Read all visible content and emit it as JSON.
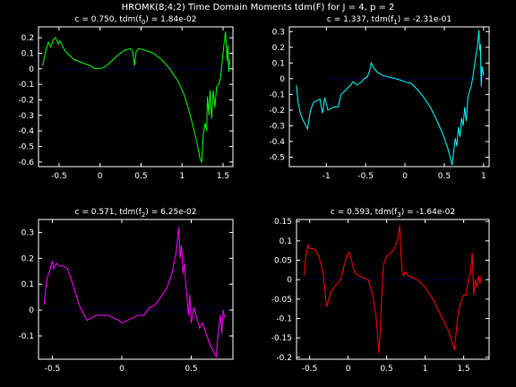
{
  "figure": {
    "title": "HROMK(8;4;2) Time Domain Moments tdm(F) for J = 4, p = 2",
    "background": "#000000",
    "axis_color": "#ffffff",
    "zero_line_color": "#0000cc"
  },
  "chart_data": [
    {
      "type": "line",
      "title_parts": [
        "c = 0.750, tdm(f",
        "0",
        ") = 1.84e-02"
      ],
      "color": "#00ff00",
      "xlim": [
        -0.75,
        1.62
      ],
      "ylim": [
        -0.63,
        0.27
      ],
      "xticks": [
        -0.5,
        0,
        0.5,
        1,
        1.5
      ],
      "xtick_labels": [
        "-0.5",
        "0",
        "0.5",
        "1",
        "1.5"
      ],
      "yticks": [
        0.2,
        0.1,
        0,
        -0.1,
        -0.2,
        -0.3,
        -0.4,
        -0.5,
        -0.6
      ],
      "ytick_labels": [
        "0.2",
        "0.1",
        "0",
        "-0.1",
        "-0.2",
        "-0.3",
        "-0.4",
        "-0.5",
        "-0.6"
      ],
      "zero_line": [
        -0.5,
        1.5
      ],
      "x": [
        -0.7,
        -0.66,
        -0.63,
        -0.6,
        -0.57,
        -0.54,
        -0.51,
        -0.49,
        -0.46,
        -0.43,
        -0.4,
        -0.36,
        -0.32,
        -0.27,
        -0.22,
        -0.17,
        -0.12,
        -0.08,
        -0.04,
        0.0,
        0.05,
        0.1,
        0.16,
        0.22,
        0.3,
        0.37,
        0.4,
        0.42,
        0.44,
        0.47,
        0.55,
        0.65,
        0.75,
        0.85,
        0.95,
        1.02,
        1.08,
        1.13,
        1.18,
        1.22,
        1.24,
        1.26,
        1.28,
        1.3,
        1.31,
        1.33,
        1.34,
        1.36,
        1.38,
        1.4,
        1.42,
        1.45,
        1.47,
        1.49,
        1.51,
        1.53,
        1.55,
        1.56,
        1.57,
        1.58
      ],
      "y": [
        0.02,
        0.12,
        0.17,
        0.14,
        0.19,
        0.2,
        0.16,
        0.18,
        0.15,
        0.12,
        0.1,
        0.08,
        0.06,
        0.05,
        0.04,
        0.03,
        0.02,
        0.005,
        0.0,
        0.0,
        0.01,
        0.03,
        0.06,
        0.09,
        0.12,
        0.13,
        0.11,
        0.02,
        0.11,
        0.13,
        0.12,
        0.1,
        0.06,
        0.0,
        -0.08,
        -0.16,
        -0.26,
        -0.36,
        -0.47,
        -0.58,
        -0.6,
        -0.42,
        -0.35,
        -0.4,
        -0.18,
        -0.3,
        -0.14,
        -0.32,
        -0.14,
        -0.25,
        -0.12,
        -0.1,
        -0.05,
        0.05,
        0.15,
        0.24,
        0.05,
        0.15,
        -0.02,
        0.06
      ]
    },
    {
      "type": "line",
      "title_parts": [
        "c = 1.337, tdm(f",
        "1",
        ") = -2.31e-01"
      ],
      "color": "#00ffff",
      "xlim": [
        -1.47,
        1.07
      ],
      "ylim": [
        -0.56,
        0.33
      ],
      "xticks": [
        -1,
        -0.5,
        0,
        0.5,
        1
      ],
      "xtick_labels": [
        "-1",
        "-0.5",
        "0",
        "0.5",
        "1"
      ],
      "yticks": [
        0.3,
        0.2,
        0.1,
        0,
        -0.1,
        -0.2,
        -0.3,
        -0.4,
        -0.5
      ],
      "ytick_labels": [
        "0.3",
        "0.2",
        "0.1",
        "0",
        "-0.1",
        "-0.2",
        "-0.3",
        "-0.4",
        "-0.5"
      ],
      "zero_line": [
        -1,
        1
      ],
      "x": [
        -1.38,
        -1.36,
        -1.33,
        -1.3,
        -1.27,
        -1.24,
        -1.2,
        -1.16,
        -1.12,
        -1.08,
        -1.05,
        -1.02,
        -0.98,
        -0.94,
        -0.9,
        -0.85,
        -0.81,
        -0.77,
        -0.73,
        -0.69,
        -0.66,
        -0.63,
        -0.61,
        -0.58,
        -0.55,
        -0.52,
        -0.48,
        -0.45,
        -0.43,
        -0.4,
        -0.35,
        -0.28,
        -0.2,
        -0.12,
        -0.05,
        0.0,
        0.08,
        0.16,
        0.24,
        0.32,
        0.4,
        0.48,
        0.55,
        0.6,
        0.64,
        0.66,
        0.68,
        0.7,
        0.72,
        0.74,
        0.76,
        0.78,
        0.8,
        0.82,
        0.84,
        0.86,
        0.88,
        0.9,
        0.92,
        0.94,
        0.95,
        0.96,
        0.97,
        0.98,
        1.0
      ],
      "y": [
        -0.04,
        -0.15,
        -0.22,
        -0.26,
        -0.29,
        -0.32,
        -0.2,
        -0.15,
        -0.14,
        -0.13,
        -0.22,
        -0.12,
        -0.2,
        -0.19,
        -0.18,
        -0.18,
        -0.1,
        -0.08,
        -0.06,
        -0.04,
        -0.02,
        -0.03,
        -0.04,
        -0.03,
        -0.02,
        0.0,
        0.01,
        0.05,
        0.1,
        0.07,
        0.04,
        0.02,
        0.01,
        0.0,
        -0.01,
        -0.02,
        -0.03,
        -0.07,
        -0.12,
        -0.18,
        -0.26,
        -0.35,
        -0.45,
        -0.55,
        -0.38,
        -0.43,
        -0.31,
        -0.37,
        -0.25,
        -0.3,
        -0.18,
        -0.27,
        -0.12,
        -0.08,
        -0.05,
        0.0,
        0.07,
        0.14,
        0.2,
        0.31,
        0.18,
        0.22,
        -0.05,
        0.08,
        0.02
      ]
    },
    {
      "type": "line",
      "title_parts": [
        "c = 0.571, tdm(f",
        "2",
        ") = 6.25e-02"
      ],
      "color": "#ff00ff",
      "xlim": [
        -0.6,
        0.8
      ],
      "ylim": [
        -0.19,
        0.35
      ],
      "xticks": [
        -0.5,
        0,
        0.5
      ],
      "xtick_labels": [
        "-0.5",
        "0",
        "0.5"
      ],
      "yticks": [
        0.3,
        0.2,
        0.1,
        0,
        -0.1
      ],
      "ytick_labels": [
        "0.3",
        "0.2",
        "0.1",
        "0",
        "-0.1"
      ],
      "zero_line": [
        -0.5,
        0.75
      ],
      "x": [
        -0.56,
        -0.54,
        -0.52,
        -0.5,
        -0.49,
        -0.47,
        -0.45,
        -0.42,
        -0.39,
        -0.36,
        -0.33,
        -0.3,
        -0.27,
        -0.25,
        -0.22,
        -0.18,
        -0.14,
        -0.1,
        -0.06,
        -0.02,
        0.0,
        0.04,
        0.08,
        0.12,
        0.16,
        0.2,
        0.24,
        0.28,
        0.32,
        0.36,
        0.39,
        0.41,
        0.42,
        0.43,
        0.44,
        0.45,
        0.46,
        0.47,
        0.48,
        0.49,
        0.5,
        0.52,
        0.54,
        0.56,
        0.58,
        0.6,
        0.62,
        0.64,
        0.66,
        0.68,
        0.69,
        0.7,
        0.71,
        0.72,
        0.73,
        0.74
      ],
      "y": [
        0.02,
        0.12,
        0.15,
        0.19,
        0.16,
        0.18,
        0.17,
        0.17,
        0.16,
        0.11,
        0.06,
        0.01,
        -0.02,
        -0.04,
        -0.03,
        -0.02,
        -0.02,
        -0.02,
        -0.03,
        -0.04,
        -0.05,
        -0.04,
        -0.03,
        -0.02,
        -0.02,
        0.01,
        0.02,
        0.05,
        0.08,
        0.14,
        0.22,
        0.32,
        0.2,
        0.25,
        0.14,
        0.18,
        0.1,
        0.05,
        -0.02,
        0.06,
        -0.05,
        0.01,
        -0.03,
        -0.07,
        -0.05,
        -0.08,
        -0.11,
        -0.14,
        -0.16,
        -0.18,
        -0.11,
        -0.06,
        -0.02,
        -0.09,
        0.0,
        -0.03
      ]
    },
    {
      "type": "line",
      "title_parts": [
        "c = 0.593, tdm(f",
        "3",
        ") = -1.64e-02"
      ],
      "color": "#ff0000",
      "xlim": [
        -0.67,
        1.83
      ],
      "ylim": [
        -0.205,
        0.155
      ],
      "xticks": [
        -0.5,
        0,
        0.5,
        1,
        1.5
      ],
      "xtick_labels": [
        "-0.5",
        "0",
        "0.5",
        "1",
        "1.5"
      ],
      "yticks": [
        0.15,
        0.1,
        0.05,
        0,
        -0.05,
        -0.1,
        -0.15,
        -0.2
      ],
      "ytick_labels": [
        "0.15",
        "0.1",
        "0.05",
        "0",
        "-0.05",
        "-0.1",
        "-0.15",
        "-0.2"
      ],
      "zero_line": [
        -0.5,
        1.75
      ],
      "x": [
        -0.57,
        -0.55,
        -0.52,
        -0.5,
        -0.48,
        -0.45,
        -0.42,
        -0.38,
        -0.35,
        -0.32,
        -0.3,
        -0.28,
        -0.25,
        -0.22,
        -0.18,
        -0.14,
        -0.1,
        -0.06,
        -0.02,
        0.02,
        0.08,
        0.14,
        0.2,
        0.26,
        0.32,
        0.36,
        0.4,
        0.42,
        0.44,
        0.46,
        0.5,
        0.56,
        0.6,
        0.64,
        0.67,
        0.69,
        0.7,
        0.72,
        0.74,
        0.78,
        0.84,
        0.9,
        1.0,
        1.1,
        1.2,
        1.3,
        1.38,
        1.42,
        1.46,
        1.5,
        1.53,
        1.56,
        1.59,
        1.61,
        1.63,
        1.65,
        1.67,
        1.69,
        1.71,
        1.73
      ],
      "y": [
        0.01,
        0.06,
        0.09,
        0.08,
        0.08,
        0.08,
        0.075,
        0.06,
        0.04,
        0.01,
        -0.03,
        -0.07,
        -0.05,
        -0.03,
        -0.02,
        -0.01,
        0.0,
        0.03,
        0.06,
        0.07,
        0.02,
        0.01,
        0.005,
        0.0,
        -0.04,
        -0.09,
        -0.19,
        -0.12,
        -0.02,
        0.04,
        0.06,
        0.07,
        0.08,
        0.1,
        0.14,
        0.05,
        0.02,
        0.01,
        0.02,
        0.01,
        0.005,
        0.0,
        -0.02,
        -0.05,
        -0.09,
        -0.13,
        -0.18,
        -0.1,
        -0.06,
        -0.04,
        -0.04,
        0.0,
        0.02,
        0.07,
        -0.04,
        0.0,
        -0.02,
        0.01,
        -0.01,
        0.01
      ]
    }
  ]
}
